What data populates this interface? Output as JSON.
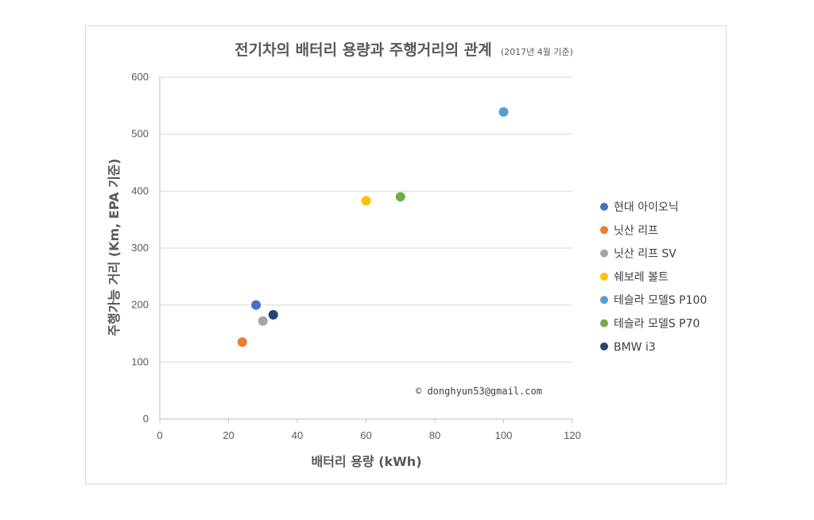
{
  "chart_data": {
    "type": "scatter",
    "title": "전기차의 배터리 용량과 주행거리의 관계",
    "subtitle": "(2017년 4월 기준)",
    "xlabel": "배터리 용량 (kWh)",
    "ylabel": "주행가능 거리 (Km, EPA 기준)",
    "xlim": [
      0,
      120
    ],
    "ylim": [
      0,
      600
    ],
    "xticks": [
      0,
      20,
      40,
      60,
      80,
      100,
      120
    ],
    "yticks": [
      0,
      100,
      200,
      300,
      400,
      500,
      600
    ],
    "grid": "horizontal",
    "legend_position": "right",
    "series": [
      {
        "name": "현대 아이오닉",
        "color": "#4472c4",
        "x": 28,
        "y": 200
      },
      {
        "name": "닛산 리프",
        "color": "#ed7d31",
        "x": 24,
        "y": 135
      },
      {
        "name": "닛산 리프 SV",
        "color": "#a5a5a5",
        "x": 30,
        "y": 172
      },
      {
        "name": "쉐보레 볼트",
        "color": "#ffc000",
        "x": 60,
        "y": 383
      },
      {
        "name": "테슬라 모델S P100",
        "color": "#5b9bd5",
        "x": 100,
        "y": 539
      },
      {
        "name": "테슬라 모델S P70",
        "color": "#70ad47",
        "x": 70,
        "y": 390
      },
      {
        "name": "BMW i3",
        "color": "#264478",
        "x": 33,
        "y": 183
      }
    ],
    "annotation": "©  donghyun53@gmail.com"
  }
}
